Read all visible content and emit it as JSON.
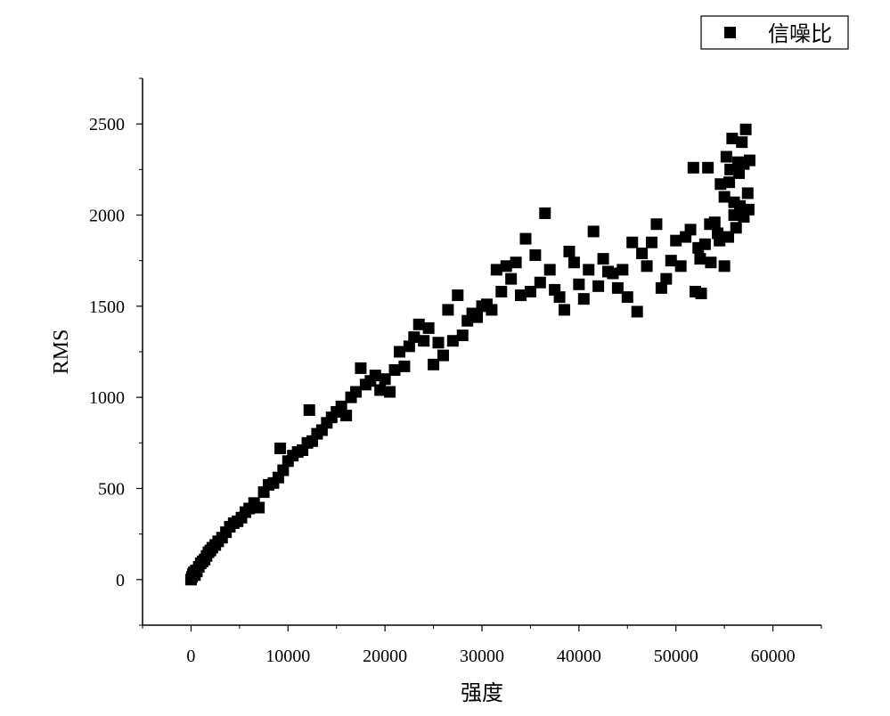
{
  "chart_data": {
    "type": "scatter",
    "title": "",
    "xlabel": "强度",
    "ylabel": "RMS",
    "xlim": [
      -5000,
      65000
    ],
    "ylim": [
      -250,
      2750
    ],
    "x_ticks": [
      0,
      10000,
      20000,
      30000,
      40000,
      50000,
      60000
    ],
    "y_ticks": [
      0,
      500,
      1000,
      1500,
      2000,
      2500
    ],
    "x_tick_labels": [
      "0",
      "10000",
      "20000",
      "30000",
      "40000",
      "50000",
      "60000"
    ],
    "y_tick_labels": [
      "0",
      "500",
      "1000",
      "1500",
      "2000",
      "2500"
    ],
    "grid": false,
    "legend_position": "top-right",
    "marker": "square",
    "marker_color": "#000000",
    "series": [
      {
        "name": "信噪比",
        "points": [
          [
            0,
            0
          ],
          [
            100,
            15
          ],
          [
            200,
            30
          ],
          [
            300,
            40
          ],
          [
            400,
            25
          ],
          [
            500,
            50
          ],
          [
            600,
            45
          ],
          [
            800,
            70
          ],
          [
            1000,
            90
          ],
          [
            1200,
            100
          ],
          [
            1400,
            110
          ],
          [
            1600,
            130
          ],
          [
            1800,
            150
          ],
          [
            2000,
            160
          ],
          [
            2200,
            175
          ],
          [
            2500,
            190
          ],
          [
            2800,
            210
          ],
          [
            3200,
            230
          ],
          [
            3600,
            260
          ],
          [
            4000,
            290
          ],
          [
            4400,
            310
          ],
          [
            4800,
            320
          ],
          [
            5200,
            340
          ],
          [
            5600,
            370
          ],
          [
            6000,
            390
          ],
          [
            6500,
            420
          ],
          [
            7000,
            395
          ],
          [
            7500,
            480
          ],
          [
            8000,
            520
          ],
          [
            8500,
            530
          ],
          [
            9000,
            560
          ],
          [
            9200,
            720
          ],
          [
            9500,
            600
          ],
          [
            10000,
            650
          ],
          [
            10500,
            680
          ],
          [
            11000,
            700
          ],
          [
            11500,
            710
          ],
          [
            12000,
            750
          ],
          [
            12200,
            930
          ],
          [
            12500,
            760
          ],
          [
            13000,
            800
          ],
          [
            13500,
            820
          ],
          [
            14000,
            860
          ],
          [
            14500,
            890
          ],
          [
            15000,
            920
          ],
          [
            15500,
            950
          ],
          [
            16000,
            900
          ],
          [
            16500,
            1000
          ],
          [
            17000,
            1030
          ],
          [
            17500,
            1160
          ],
          [
            18000,
            1070
          ],
          [
            18500,
            1090
          ],
          [
            19000,
            1120
          ],
          [
            19500,
            1040
          ],
          [
            20000,
            1100
          ],
          [
            20500,
            1030
          ],
          [
            21000,
            1150
          ],
          [
            21500,
            1250
          ],
          [
            22000,
            1170
          ],
          [
            22500,
            1280
          ],
          [
            23000,
            1330
          ],
          [
            23500,
            1400
          ],
          [
            24000,
            1310
          ],
          [
            24500,
            1380
          ],
          [
            25000,
            1180
          ],
          [
            25500,
            1300
          ],
          [
            26000,
            1230
          ],
          [
            26500,
            1480
          ],
          [
            27000,
            1310
          ],
          [
            27500,
            1560
          ],
          [
            28000,
            1340
          ],
          [
            28500,
            1420
          ],
          [
            29000,
            1460
          ],
          [
            29500,
            1440
          ],
          [
            30000,
            1500
          ],
          [
            30500,
            1510
          ],
          [
            31000,
            1480
          ],
          [
            31500,
            1700
          ],
          [
            32000,
            1580
          ],
          [
            32500,
            1720
          ],
          [
            33000,
            1650
          ],
          [
            33500,
            1740
          ],
          [
            34000,
            1560
          ],
          [
            34500,
            1870
          ],
          [
            35000,
            1580
          ],
          [
            35500,
            1780
          ],
          [
            36000,
            1630
          ],
          [
            36500,
            2010
          ],
          [
            37000,
            1700
          ],
          [
            37500,
            1590
          ],
          [
            38000,
            1550
          ],
          [
            38500,
            1480
          ],
          [
            39000,
            1800
          ],
          [
            39500,
            1740
          ],
          [
            40000,
            1620
          ],
          [
            40500,
            1540
          ],
          [
            41000,
            1700
          ],
          [
            41500,
            1910
          ],
          [
            42000,
            1610
          ],
          [
            42500,
            1760
          ],
          [
            43000,
            1690
          ],
          [
            43500,
            1680
          ],
          [
            44000,
            1600
          ],
          [
            44500,
            1700
          ],
          [
            45000,
            1550
          ],
          [
            45500,
            1850
          ],
          [
            46000,
            1470
          ],
          [
            46500,
            1790
          ],
          [
            47000,
            1720
          ],
          [
            47500,
            1850
          ],
          [
            48000,
            1950
          ],
          [
            48500,
            1600
          ],
          [
            49000,
            1650
          ],
          [
            49500,
            1750
          ],
          [
            50000,
            1860
          ],
          [
            50500,
            1720
          ],
          [
            51000,
            1880
          ],
          [
            51500,
            1920
          ],
          [
            51800,
            2260
          ],
          [
            52000,
            1580
          ],
          [
            52300,
            1820
          ],
          [
            52600,
            1570
          ],
          [
            53000,
            1840
          ],
          [
            53300,
            2260
          ],
          [
            53600,
            1740
          ],
          [
            54000,
            1960
          ],
          [
            54300,
            1900
          ],
          [
            54600,
            2170
          ],
          [
            55000,
            1720
          ],
          [
            55200,
            2320
          ],
          [
            55400,
            1880
          ],
          [
            55600,
            2250
          ],
          [
            55800,
            2420
          ],
          [
            56000,
            2070
          ],
          [
            56200,
            1930
          ],
          [
            56400,
            2290
          ],
          [
            56600,
            2050
          ],
          [
            56800,
            2400
          ],
          [
            57000,
            1990
          ],
          [
            57200,
            2470
          ],
          [
            57400,
            2120
          ],
          [
            57600,
            2300
          ],
          [
            55000,
            2100
          ],
          [
            55500,
            2180
          ],
          [
            56000,
            2000
          ],
          [
            56500,
            2230
          ],
          [
            57000,
            2280
          ],
          [
            57500,
            2030
          ],
          [
            54500,
            1860
          ],
          [
            53500,
            1950
          ],
          [
            52500,
            1760
          ]
        ]
      }
    ]
  }
}
